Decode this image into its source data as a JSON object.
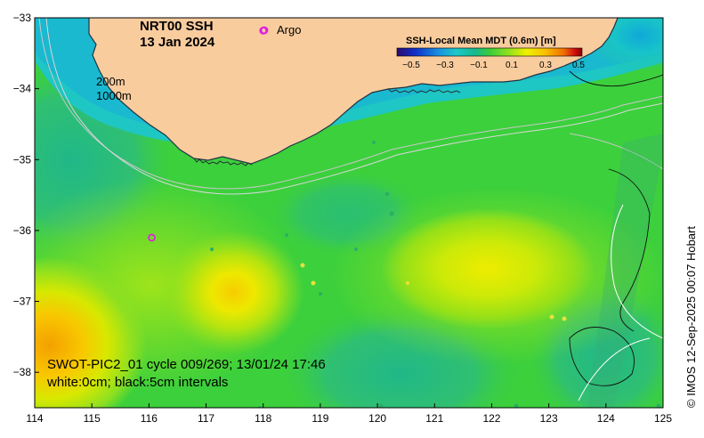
{
  "title": {
    "line1": "NRT00 SSH",
    "line2": "13 Jan 2024"
  },
  "legend": {
    "argo_label": "Argo",
    "argo_color": "#e020e0"
  },
  "isobaths": {
    "label_200": "200m",
    "label_1000": "1000m"
  },
  "colorbar": {
    "title": "SSH-Local Mean MDT (0.6m) [m]",
    "ticks": [
      "−0.5",
      "−0.3",
      "−0.1",
      "0.1",
      "0.3",
      "0.5"
    ],
    "colors": [
      "#2a0a6e",
      "#1030c8",
      "#1aa0e0",
      "#1cc8c8",
      "#18b890",
      "#3acc3a",
      "#8ee020",
      "#f0f000",
      "#f8c000",
      "#f07000",
      "#d01010",
      "#8a0000"
    ]
  },
  "caption": {
    "line1": "SWOT-PIC2_01 cycle 009/269; 13/01/24 17:46",
    "line2": "white:0cm; black:5cm intervals"
  },
  "credit": "© IMOS 12-Sep-2025 00:07 Hobart",
  "axes": {
    "x_ticks": [
      "114",
      "115",
      "116",
      "117",
      "118",
      "119",
      "120",
      "121",
      "122",
      "123",
      "124",
      "125"
    ],
    "y_ticks": [
      "−33",
      "−34",
      "−35",
      "−36",
      "−37",
      "−38"
    ]
  },
  "map_extent": {
    "lon_range": [
      114,
      125
    ],
    "lat_range": [
      -38.5,
      -33
    ]
  },
  "argo_floats": [
    {
      "lon": 118.0,
      "lat": -33.18
    },
    {
      "lon": 116.05,
      "lat": -36.1
    }
  ],
  "colors": {
    "land": "#f9cc9e",
    "ocean_base": "#3cd03c",
    "frame": "#000000"
  }
}
